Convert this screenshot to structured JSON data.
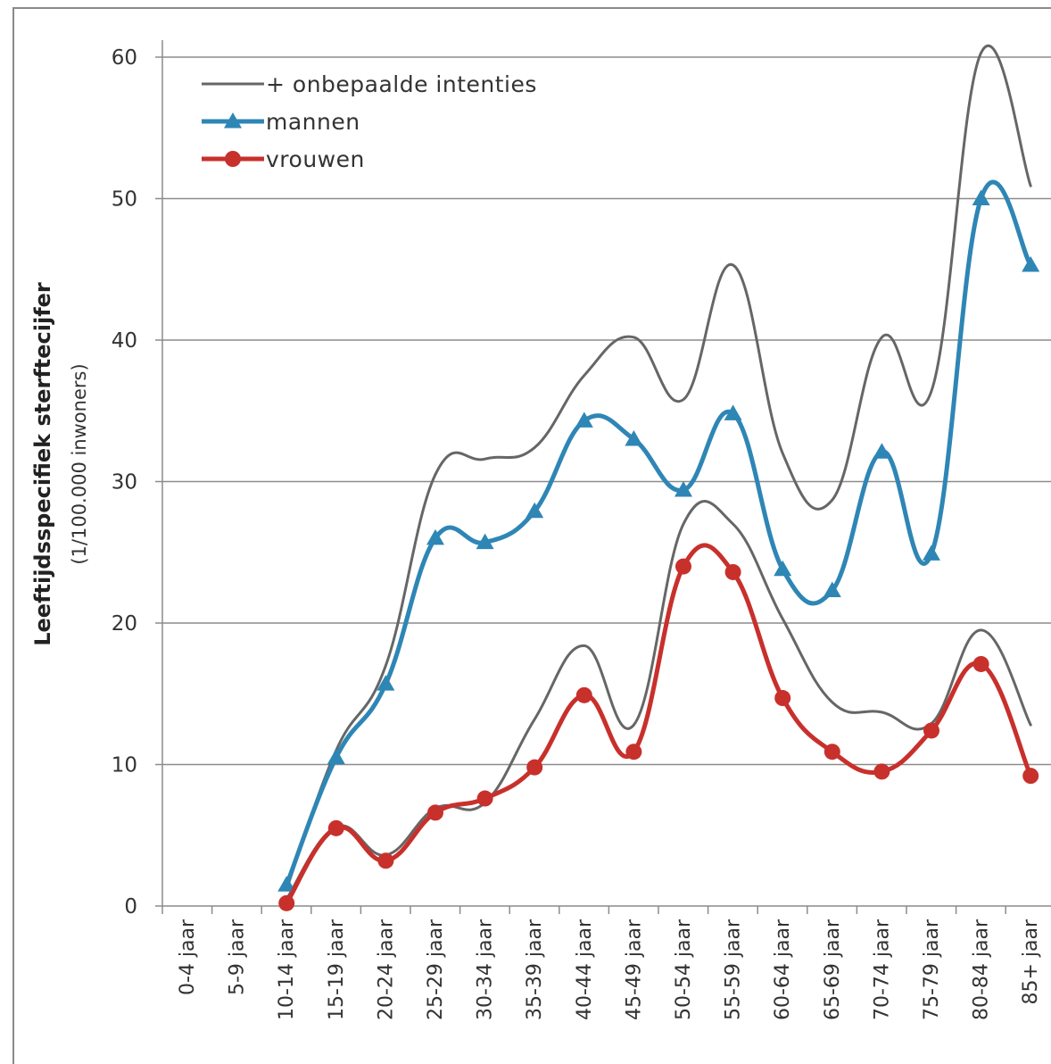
{
  "chart_data": {
    "type": "line",
    "categories": [
      "0-4 jaar",
      "5-9 jaar",
      "10-14 jaar",
      "15-19 jaar",
      "20-24 jaar",
      "25-29 jaar",
      "30-34 jaar",
      "35-39 jaar",
      "40-44 jaar",
      "45-49 jaar",
      "50-54 jaar",
      "55-59 jaar",
      "60-64 jaar",
      "65-69 jaar",
      "70-74 jaar",
      "75-79 jaar",
      "80-84 jaar",
      "85+ jaar"
    ],
    "ylabel": "Leeftijdsspecifiek sterftecijfer",
    "ylabel_unit": "(1/100.000 inwoners)",
    "ylim": [
      0,
      60
    ],
    "yticks": [
      0,
      10,
      20,
      30,
      40,
      50,
      60
    ],
    "grid": true,
    "legend_position": "top-left",
    "series": [
      {
        "name": "mannen",
        "color": "#2e86b5",
        "marker": "triangle",
        "values": [
          null,
          null,
          1.5,
          10.5,
          15.7,
          26.0,
          25.7,
          27.9,
          34.3,
          33.0,
          29.4,
          34.8,
          23.8,
          22.3,
          32.1,
          24.9,
          50.0,
          45.3
        ]
      },
      {
        "name": "vrouwen",
        "color": "#c8302c",
        "marker": "circle",
        "values": [
          null,
          null,
          0.2,
          5.5,
          3.2,
          6.6,
          7.6,
          9.8,
          14.9,
          10.9,
          24.0,
          23.6,
          14.7,
          10.9,
          9.5,
          12.4,
          17.1,
          9.2
        ]
      },
      {
        "name": "+ onbepaalde intenties",
        "color": "#666666",
        "marker": "none",
        "values": [
          null,
          null,
          1.2,
          11.0,
          17.0,
          30.5,
          31.6,
          32.4,
          37.5,
          40.2,
          35.8,
          45.3,
          32.0,
          28.7,
          40.2,
          36.4,
          60.3,
          50.9
        ]
      },
      {
        "name": "+ onbepaalde intenties (vrouwen)",
        "color": "#666666",
        "marker": "none",
        "values": [
          null,
          null,
          0.5,
          5.6,
          3.6,
          6.9,
          7.3,
          13.2,
          18.4,
          12.8,
          27.0,
          27.0,
          20.3,
          14.4,
          13.7,
          12.9,
          19.5,
          12.8
        ]
      }
    ],
    "legend": [
      {
        "label": "+ onbepaalde intenties",
        "color": "#666666",
        "marker": "none"
      },
      {
        "label": "mannen",
        "color": "#2e86b5",
        "marker": "triangle"
      },
      {
        "label": "vrouwen",
        "color": "#c8302c",
        "marker": "circle"
      }
    ]
  }
}
